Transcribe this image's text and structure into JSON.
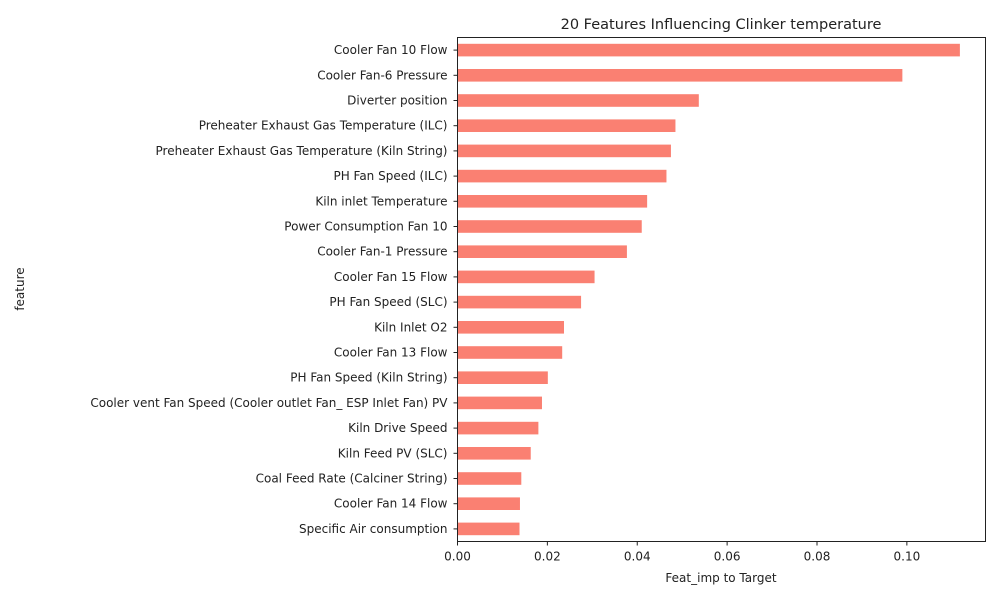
{
  "chart_data": {
    "type": "bar",
    "orientation": "horizontal",
    "title": "20 Features Influencing Clinker temperature",
    "xlabel": "Feat_imp to Target",
    "ylabel": "feature",
    "xlim": [
      0,
      0.1175
    ],
    "xticks": [
      "0.00",
      "0.02",
      "0.04",
      "0.06",
      "0.08",
      "0.10"
    ],
    "xtick_values": [
      0,
      0.02,
      0.04,
      0.06,
      0.08,
      0.1
    ],
    "bar_color": "#fa8072",
    "grid": false,
    "categories": [
      "Cooler Fan 10 Flow",
      "Cooler Fan-6 Pressure",
      "Diverter position",
      "Preheater Exhaust Gas Temperature (ILC)",
      "Preheater Exhaust Gas Temperature  (Kiln String)",
      "PH Fan Speed (ILC)",
      "Kiln inlet Temperature",
      "Power Consumption Fan 10",
      "Cooler Fan-1 Pressure",
      "Cooler Fan 15 Flow",
      "PH Fan Speed (SLC)",
      "Kiln Inlet O2",
      "Cooler Fan 13 Flow",
      "PH Fan Speed  (Kiln String)",
      "Cooler vent Fan Speed (Cooler outlet Fan_ ESP Inlet Fan) PV",
      "Kiln Drive Speed",
      "Kiln Feed PV (SLC)",
      "Coal Feed Rate (Calciner String)",
      "Cooler Fan 14 Flow",
      "Specific Air consumption"
    ],
    "values": [
      0.1118,
      0.099,
      0.0537,
      0.0485,
      0.0475,
      0.0465,
      0.0422,
      0.041,
      0.0377,
      0.0305,
      0.0275,
      0.0237,
      0.0233,
      0.0201,
      0.0188,
      0.018,
      0.0163,
      0.0142,
      0.0139,
      0.0138
    ]
  }
}
